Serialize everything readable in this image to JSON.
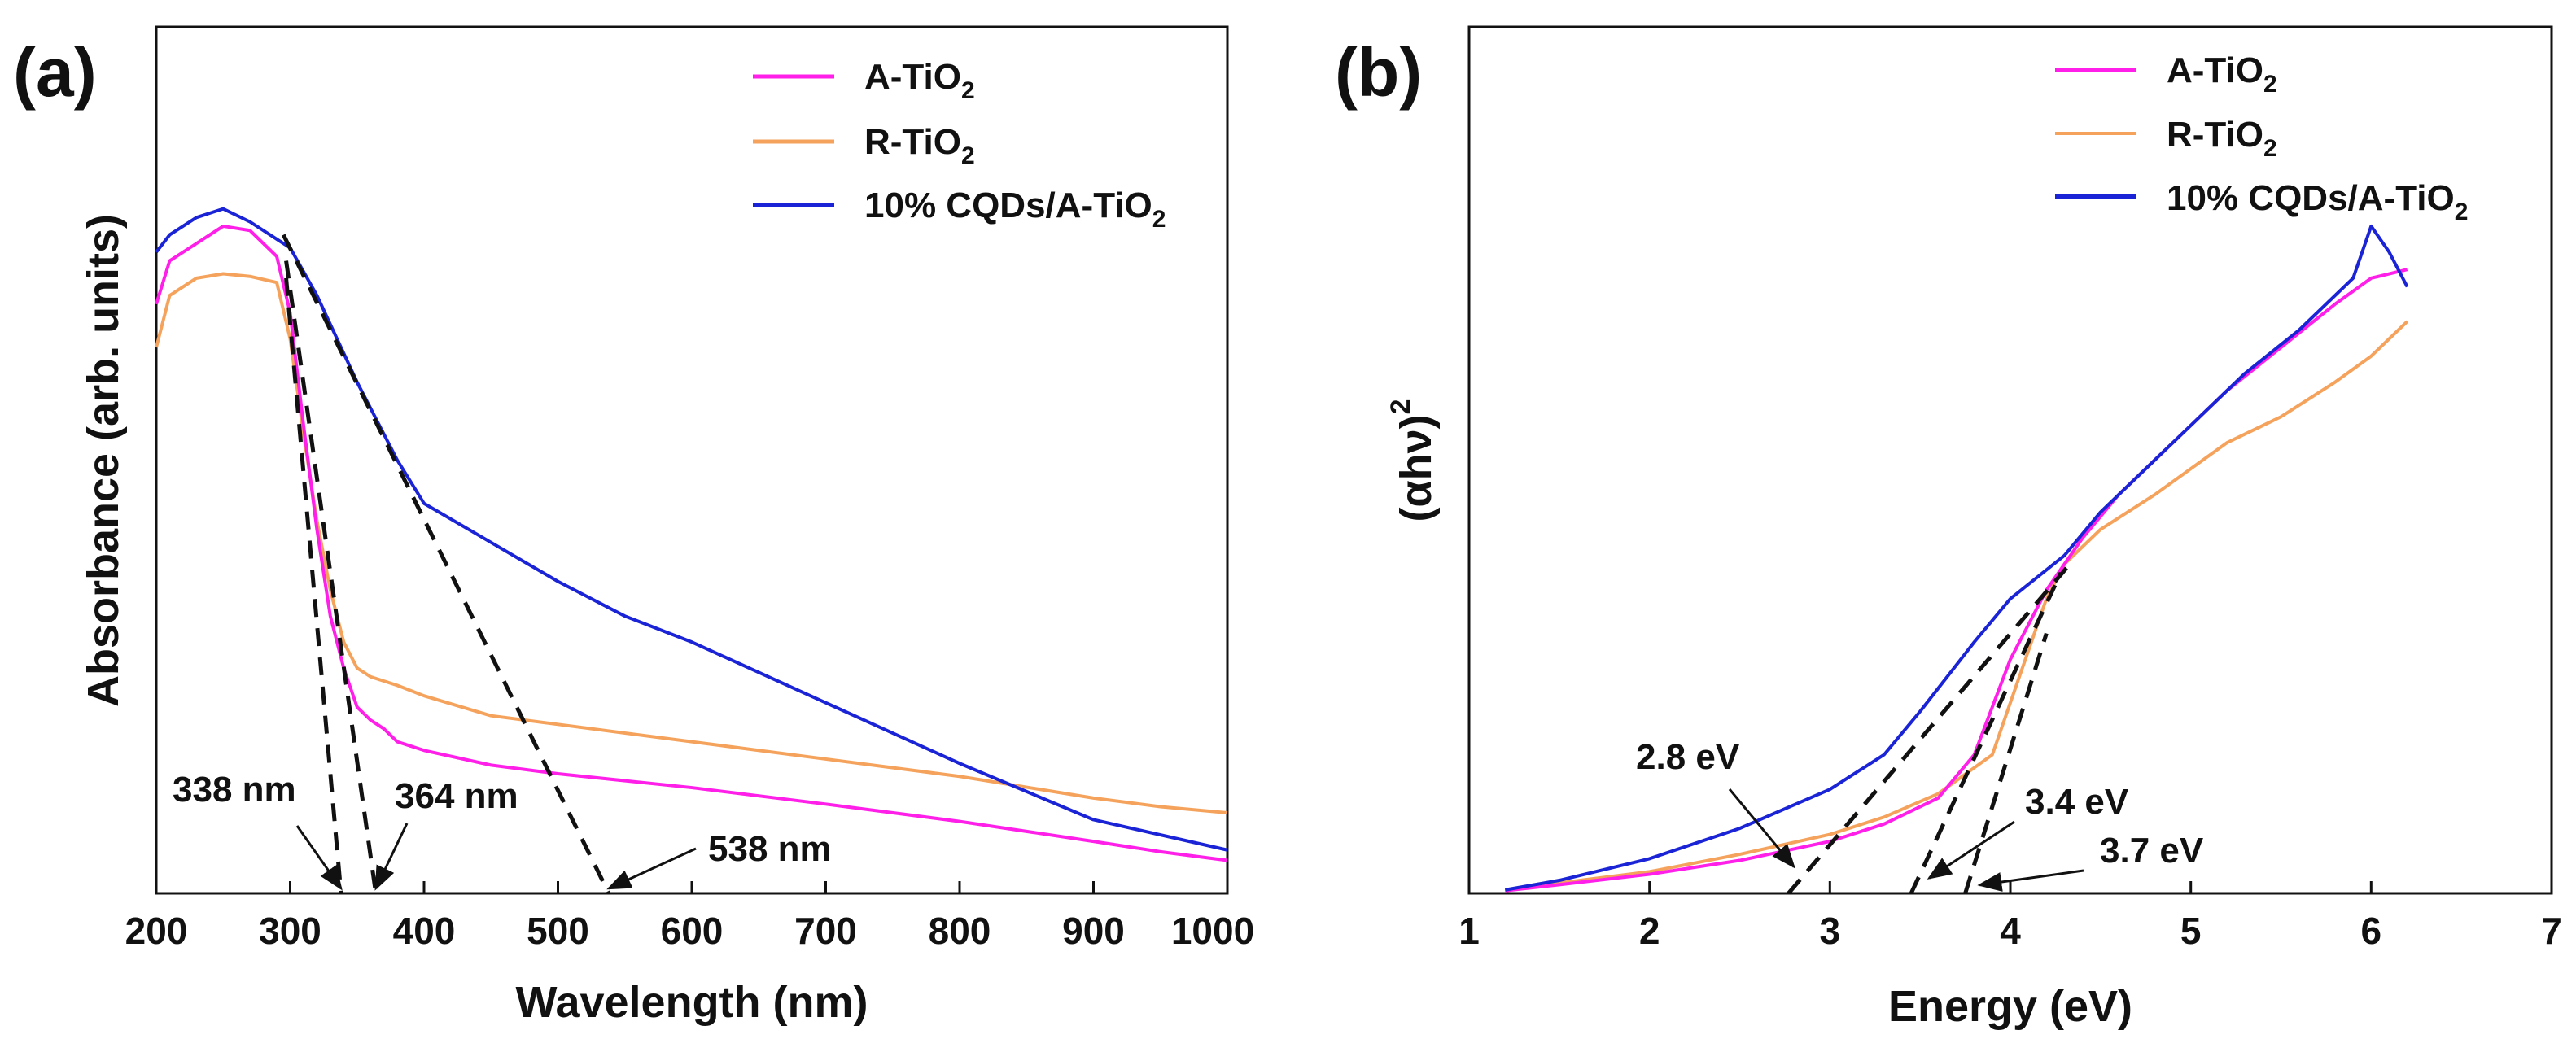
{
  "figure": {
    "panel_a_letter": "(a)",
    "panel_b_letter": "(b)"
  },
  "chart_data": [
    {
      "type": "line",
      "panel": "(a)",
      "xlabel": "Wavelength (nm)",
      "ylabel": "Absorbance (arb. units)",
      "xlim": [
        200,
        1000
      ],
      "ylim": [
        0,
        1
      ],
      "xticks": [
        200,
        300,
        400,
        500,
        600,
        700,
        800,
        900,
        1000
      ],
      "legend_position": "top-right",
      "series": [
        {
          "name": "A-TiO2",
          "label_main": "A-TiO",
          "label_sub": "2",
          "color": "#ff1fe8",
          "x": [
            200,
            210,
            230,
            250,
            270,
            290,
            300,
            310,
            320,
            330,
            340,
            350,
            360,
            370,
            380,
            400,
            450,
            500,
            600,
            700,
            800,
            900,
            950,
            1000
          ],
          "y": [
            0.68,
            0.73,
            0.75,
            0.77,
            0.765,
            0.735,
            0.67,
            0.54,
            0.42,
            0.32,
            0.26,
            0.215,
            0.2,
            0.19,
            0.175,
            0.165,
            0.148,
            0.138,
            0.122,
            0.103,
            0.083,
            0.06,
            0.048,
            0.038
          ]
        },
        {
          "name": "R-TiO2",
          "label_main": "R-TiO",
          "label_sub": "2",
          "color": "#f5a35c",
          "x": [
            200,
            210,
            230,
            250,
            270,
            290,
            300,
            310,
            320,
            330,
            340,
            350,
            360,
            380,
            400,
            450,
            500,
            600,
            700,
            800,
            900,
            950,
            1000
          ],
          "y": [
            0.63,
            0.69,
            0.71,
            0.715,
            0.712,
            0.705,
            0.64,
            0.53,
            0.43,
            0.35,
            0.29,
            0.26,
            0.25,
            0.24,
            0.228,
            0.205,
            0.195,
            0.175,
            0.155,
            0.135,
            0.11,
            0.1,
            0.093
          ]
        },
        {
          "name": "10% CQDs/A-TiO2",
          "label_main": "10% CQDs/A-TiO",
          "label_sub": "2",
          "color": "#1a24d6",
          "x": [
            200,
            210,
            230,
            250,
            270,
            290,
            300,
            320,
            350,
            380,
            400,
            450,
            500,
            550,
            600,
            700,
            800,
            900,
            1000
          ],
          "y": [
            0.74,
            0.76,
            0.78,
            0.79,
            0.775,
            0.755,
            0.745,
            0.69,
            0.59,
            0.5,
            0.45,
            0.405,
            0.36,
            0.32,
            0.29,
            0.22,
            0.15,
            0.085,
            0.05
          ]
        }
      ],
      "tangents": [
        {
          "x": [
            297,
            338
          ],
          "y": [
            0.71,
            0.0
          ]
        },
        {
          "x": [
            297,
            364
          ],
          "y": [
            0.73,
            0.0
          ]
        },
        {
          "x": [
            295,
            538
          ],
          "y": [
            0.76,
            0.0
          ]
        }
      ],
      "annotations": [
        {
          "text": "338 nm",
          "target": [
            338,
            0.0
          ]
        },
        {
          "text": "364 nm",
          "target": [
            364,
            0.0
          ]
        },
        {
          "text": "538 nm",
          "target": [
            538,
            0.0
          ]
        }
      ]
    },
    {
      "type": "line",
      "panel": "(b)",
      "xlabel": "Energy (eV)",
      "ylabel_main": "(αhν)",
      "ylabel_sup": "2",
      "xlim": [
        1,
        7
      ],
      "ylim": [
        0,
        1
      ],
      "xticks": [
        1,
        2,
        3,
        4,
        5,
        6,
        7
      ],
      "legend_position": "top-right",
      "series": [
        {
          "name": "A-TiO2",
          "label_main": "A-TiO",
          "label_sub": "2",
          "color": "#ff1fe8",
          "x": [
            1.2,
            1.5,
            2.0,
            2.5,
            3.0,
            3.3,
            3.6,
            3.8,
            4.0,
            4.2,
            4.4,
            4.6,
            4.8,
            5.0,
            5.2,
            5.5,
            5.8,
            6.0,
            6.2
          ],
          "y": [
            0.003,
            0.01,
            0.022,
            0.038,
            0.06,
            0.08,
            0.11,
            0.16,
            0.27,
            0.35,
            0.41,
            0.46,
            0.5,
            0.54,
            0.58,
            0.63,
            0.68,
            0.71,
            0.72
          ]
        },
        {
          "name": "R-TiO2",
          "label_main": "R-TiO",
          "label_sub": "2",
          "color": "#f5a35c",
          "x": [
            1.2,
            1.5,
            2.0,
            2.5,
            3.0,
            3.3,
            3.6,
            3.9,
            4.0,
            4.1,
            4.2,
            4.3,
            4.5,
            4.8,
            5.0,
            5.2,
            5.5,
            5.8,
            6.0,
            6.2
          ],
          "y": [
            0.003,
            0.012,
            0.025,
            0.045,
            0.068,
            0.088,
            0.115,
            0.16,
            0.22,
            0.28,
            0.34,
            0.38,
            0.42,
            0.46,
            0.49,
            0.52,
            0.55,
            0.59,
            0.62,
            0.66
          ]
        },
        {
          "name": "10% CQDs/A-TiO2",
          "label_main": "10% CQDs/A-TiO",
          "label_sub": "2",
          "color": "#1a24d6",
          "x": [
            1.2,
            1.5,
            2.0,
            2.5,
            3.0,
            3.3,
            3.5,
            3.8,
            4.0,
            4.3,
            4.5,
            4.8,
            5.0,
            5.3,
            5.6,
            5.9,
            6.0,
            6.1,
            6.2
          ],
          "y": [
            0.004,
            0.015,
            0.04,
            0.075,
            0.12,
            0.16,
            0.21,
            0.29,
            0.34,
            0.39,
            0.44,
            0.5,
            0.54,
            0.6,
            0.65,
            0.71,
            0.77,
            0.74,
            0.7
          ]
        }
      ],
      "tangents": [
        {
          "x": [
            2.77,
            4.33
          ],
          "y": [
            0.0,
            0.38
          ]
        },
        {
          "x": [
            3.45,
            4.28
          ],
          "y": [
            0.0,
            0.37
          ]
        },
        {
          "x": [
            3.75,
            4.2
          ],
          "y": [
            0.0,
            0.3
          ]
        }
      ],
      "annotations": [
        {
          "text": "2.8 eV",
          "target": [
            2.8,
            0.025
          ]
        },
        {
          "text": "3.4 eV",
          "target": [
            3.55,
            0.012
          ]
        },
        {
          "text": "3.7 eV",
          "target": [
            3.83,
            0.004
          ]
        }
      ]
    }
  ]
}
